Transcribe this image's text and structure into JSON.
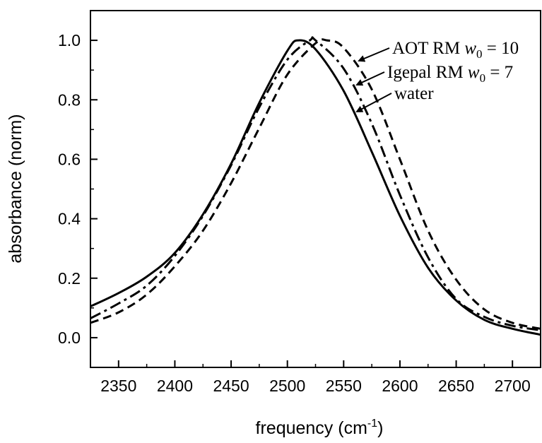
{
  "chart_data": {
    "type": "line",
    "xlabel": "frequency (cm",
    "xlabel_sup": "-1",
    "xlabel_close": ")",
    "ylabel": "absorbance (norm)",
    "xlim": [
      2325,
      2725
    ],
    "ylim": [
      -0.1,
      1.1
    ],
    "xticks": [
      2350,
      2400,
      2450,
      2500,
      2550,
      2600,
      2650,
      2700
    ],
    "xtick_labels": [
      "2350",
      "2400",
      "2450",
      "2500",
      "2550",
      "2600",
      "2650",
      "2700"
    ],
    "yticks": [
      0.0,
      0.2,
      0.4,
      0.6,
      0.8,
      1.0
    ],
    "ytick_labels": [
      "0.0",
      "0.2",
      "0.4",
      "0.6",
      "0.8",
      "1.0"
    ],
    "grid": false,
    "series": [
      {
        "name": "water",
        "style": "solid",
        "x": [
          2325,
          2350,
          2375,
          2400,
          2425,
          2450,
          2475,
          2500,
          2510,
          2525,
          2550,
          2575,
          2600,
          2625,
          2650,
          2675,
          2700,
          2725
        ],
        "y": [
          0.105,
          0.15,
          0.205,
          0.285,
          0.415,
          0.585,
          0.79,
          0.965,
          1.0,
          0.97,
          0.83,
          0.625,
          0.41,
          0.235,
          0.125,
          0.06,
          0.03,
          0.01
        ]
      },
      {
        "name": "Igepal RM w0 = 7",
        "style": "dashdot",
        "x": [
          2325,
          2350,
          2375,
          2400,
          2425,
          2450,
          2475,
          2500,
          2520,
          2525,
          2550,
          2575,
          2600,
          2625,
          2650,
          2675,
          2700,
          2725
        ],
        "y": [
          0.065,
          0.115,
          0.175,
          0.275,
          0.41,
          0.58,
          0.775,
          0.935,
          1.0,
          1.0,
          0.905,
          0.72,
          0.48,
          0.27,
          0.13,
          0.07,
          0.04,
          0.025
        ]
      },
      {
        "name": "AOT RM w0 = 10",
        "style": "dashed",
        "x": [
          2325,
          2350,
          2375,
          2400,
          2425,
          2450,
          2475,
          2500,
          2525,
          2535,
          2550,
          2575,
          2600,
          2625,
          2650,
          2675,
          2700,
          2725
        ],
        "y": [
          0.05,
          0.085,
          0.145,
          0.24,
          0.36,
          0.52,
          0.705,
          0.885,
          0.99,
          1.0,
          0.975,
          0.835,
          0.6,
          0.36,
          0.195,
          0.095,
          0.05,
          0.03
        ]
      }
    ],
    "annotations": [
      {
        "label": "AOT RM",
        "var": "w",
        "sub": "0",
        "rest": " = 10",
        "target": "AOT RM w0 = 10"
      },
      {
        "label": "Igepal RM",
        "var": "w",
        "sub": "0",
        "rest": " = 7",
        "target": "Igepal RM w0 = 7"
      },
      {
        "label": "water",
        "var": "",
        "sub": "",
        "rest": "",
        "target": "water"
      }
    ]
  }
}
